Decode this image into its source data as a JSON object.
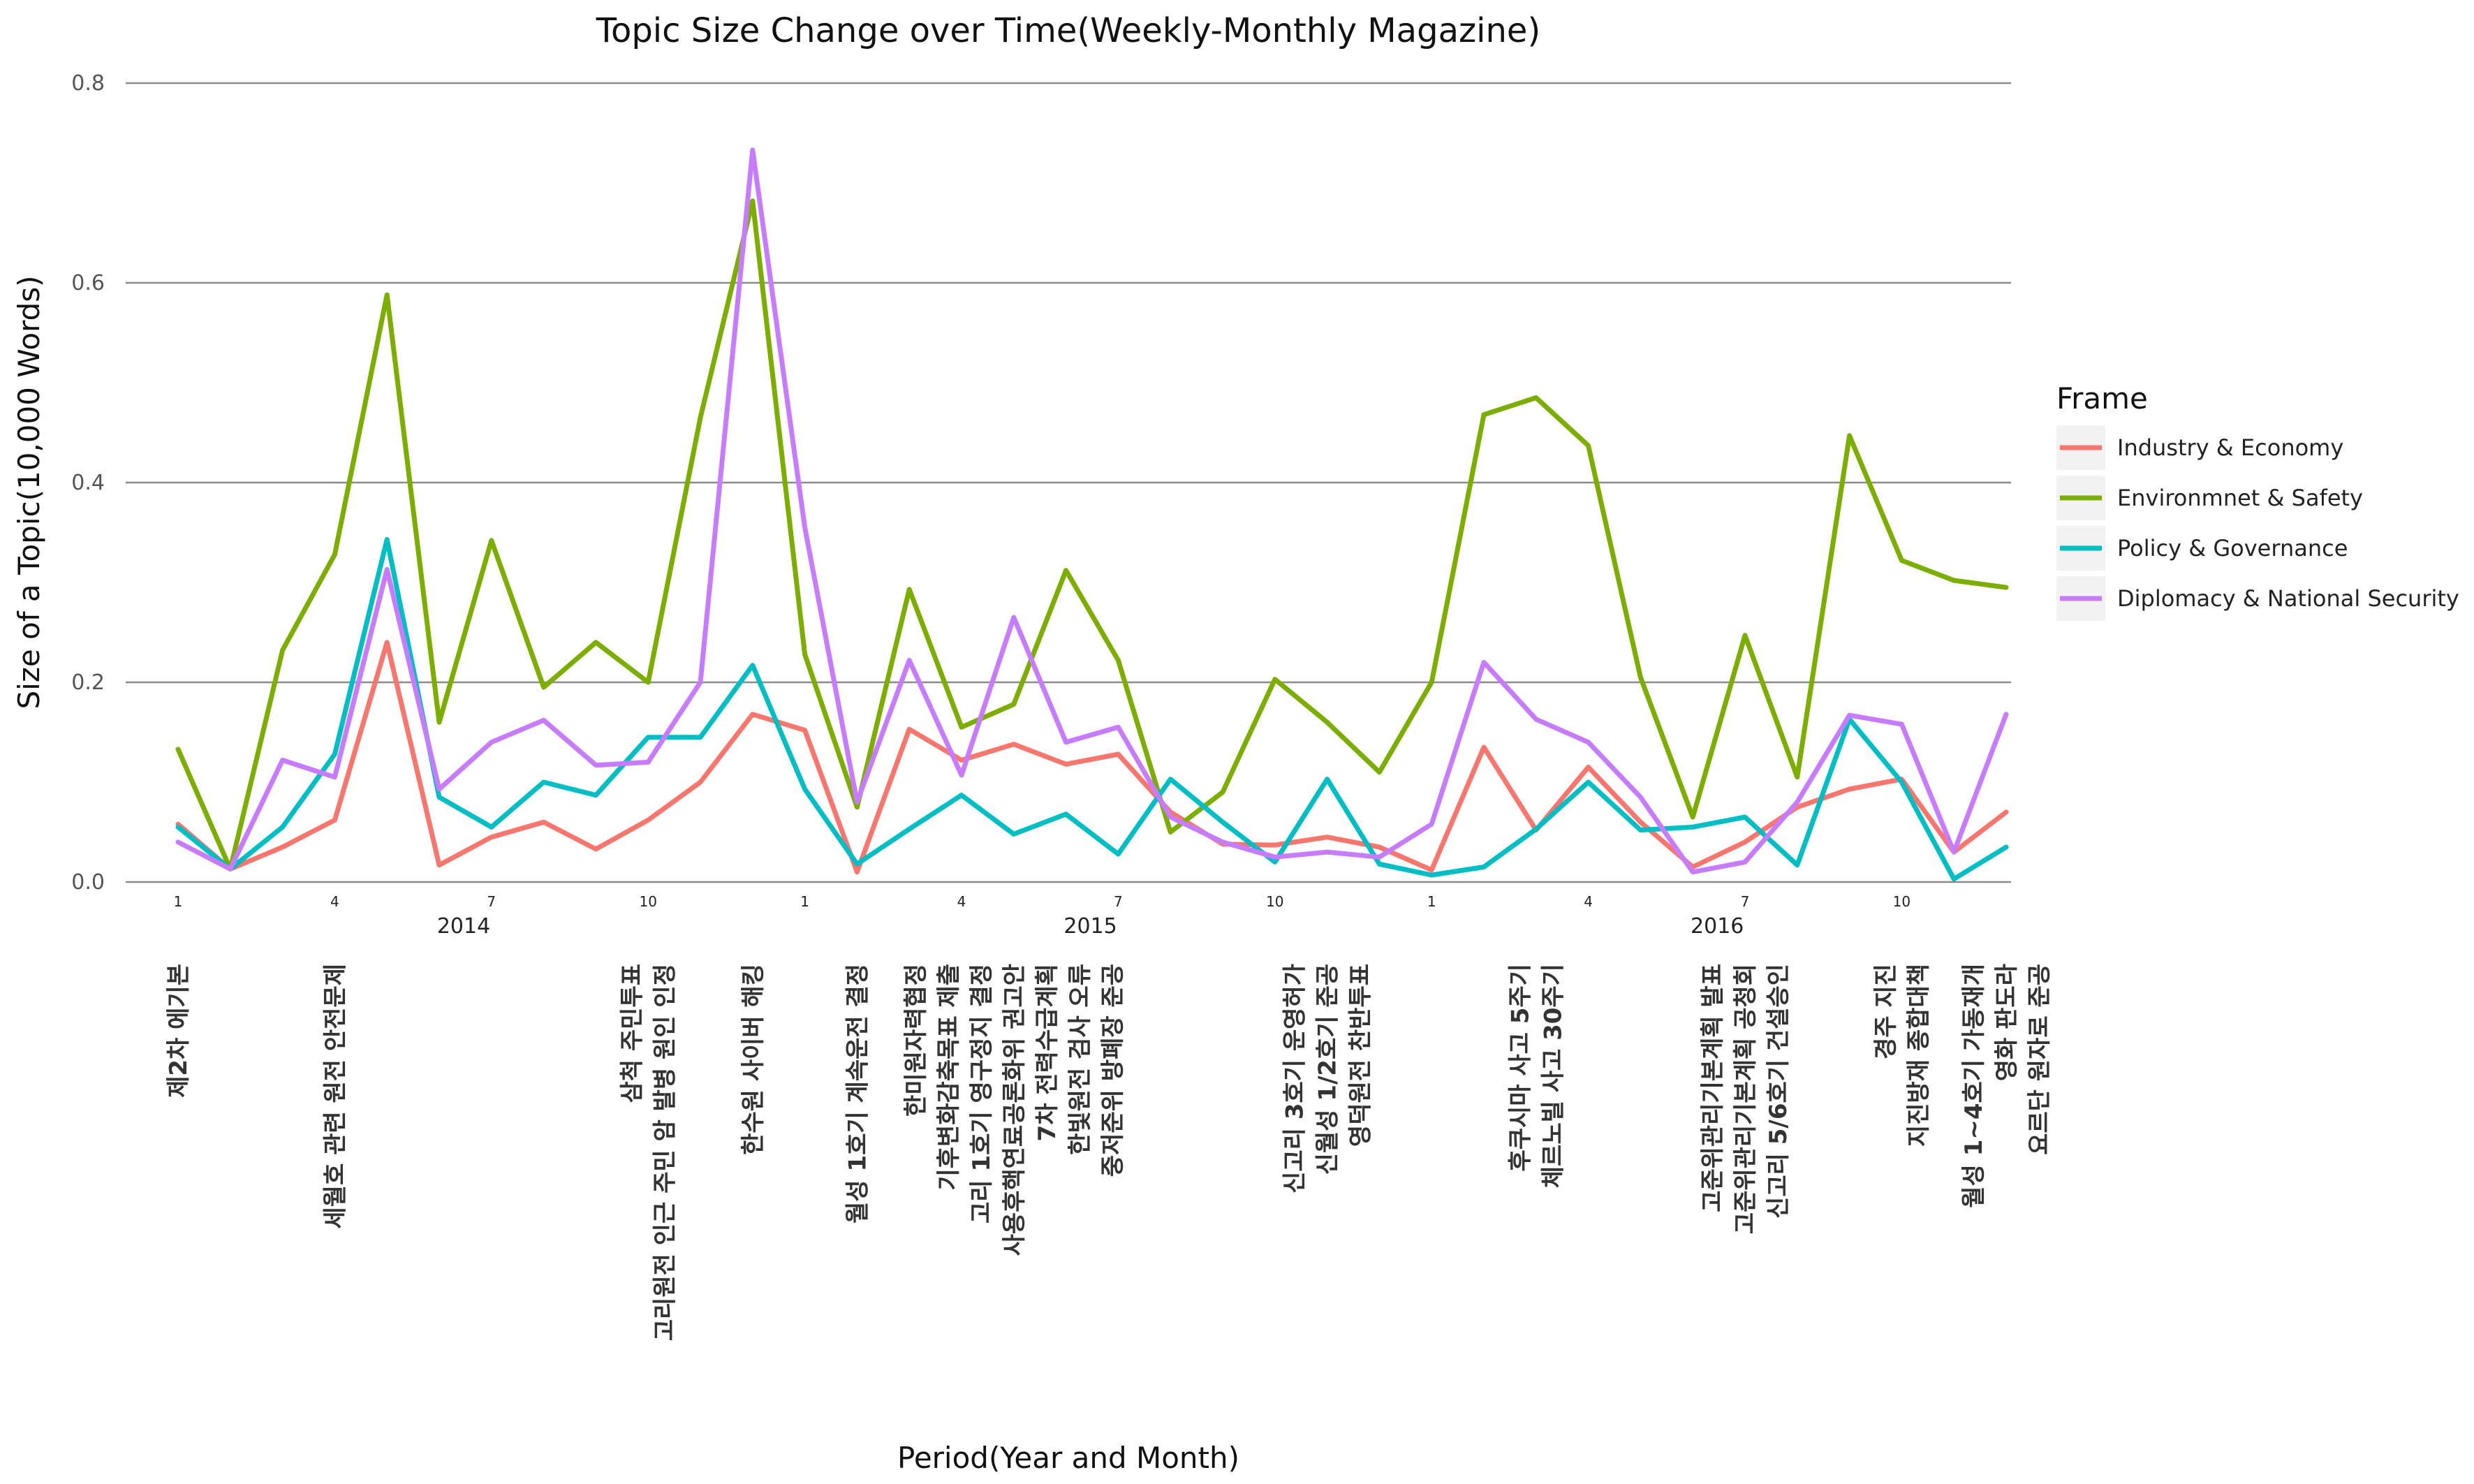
{
  "chart_data": {
    "type": "line",
    "title": "Topic Size Change over Time(Weekly-Monthly Magazine)",
    "xlabel": "Period(Year and Month)",
    "ylabel": "Size of a Topic(10,000 Words)",
    "ylim": [
      0,
      0.8
    ],
    "y_ticks": [
      "0.0",
      "0.2",
      "0.4",
      "0.6",
      "0.8"
    ],
    "grid": "horizontal",
    "legend_title": "Frame",
    "legend_position": "right",
    "x": [
      1,
      2,
      3,
      4,
      5,
      6,
      7,
      8,
      9,
      10,
      11,
      12,
      13,
      14,
      15,
      16,
      17,
      18,
      19,
      20,
      21,
      22,
      23,
      24,
      25,
      26,
      27,
      28,
      29,
      30,
      31,
      32,
      33,
      34,
      35,
      36
    ],
    "month_ticks": [
      {
        "x": 1,
        "label": "1"
      },
      {
        "x": 4,
        "label": "4"
      },
      {
        "x": 7,
        "label": "7"
      },
      {
        "x": 10,
        "label": "10"
      },
      {
        "x": 13,
        "label": "1"
      },
      {
        "x": 16,
        "label": "4"
      },
      {
        "x": 19,
        "label": "7"
      },
      {
        "x": 22,
        "label": "10"
      },
      {
        "x": 25,
        "label": "1"
      },
      {
        "x": 28,
        "label": "4"
      },
      {
        "x": 31,
        "label": "7"
      },
      {
        "x": 34,
        "label": "10"
      }
    ],
    "year_labels": [
      {
        "x": 6,
        "label": "2014"
      },
      {
        "x": 18,
        "label": "2015"
      },
      {
        "x": 30,
        "label": "2016"
      }
    ],
    "series": [
      {
        "name": "Industry & Economy",
        "color": "#F8766D",
        "values": [
          0.058,
          0.013,
          0.035,
          0.062,
          0.24,
          0.017,
          0.045,
          0.06,
          0.033,
          0.062,
          0.1,
          0.168,
          0.152,
          0.01,
          0.153,
          0.122,
          0.138,
          0.118,
          0.128,
          0.07,
          0.038,
          0.037,
          0.045,
          0.035,
          0.012,
          0.135,
          0.052,
          0.115,
          0.06,
          0.015,
          0.04,
          0.075,
          0.093,
          0.103,
          0.03,
          0.07
        ]
      },
      {
        "name": "Environmnet & Safety",
        "color": "#7CAE00",
        "values": [
          0.133,
          0.013,
          0.232,
          0.328,
          0.588,
          0.16,
          0.342,
          0.195,
          0.24,
          0.2,
          0.465,
          0.682,
          0.228,
          0.075,
          0.293,
          0.155,
          0.178,
          0.312,
          0.222,
          0.05,
          0.09,
          0.203,
          0.16,
          0.11,
          0.2,
          0.468,
          0.485,
          0.437,
          0.205,
          0.065,
          0.247,
          0.105,
          0.447,
          0.322,
          0.302,
          0.295
        ]
      },
      {
        "name": "Policy & Governance",
        "color": "#00BFC4",
        "values": [
          0.055,
          0.013,
          0.055,
          0.128,
          0.343,
          0.085,
          0.055,
          0.1,
          0.087,
          0.145,
          0.145,
          0.217,
          0.093,
          0.018,
          0.053,
          0.087,
          0.048,
          0.068,
          0.028,
          0.103,
          0.06,
          0.02,
          0.103,
          0.018,
          0.007,
          0.015,
          0.053,
          0.1,
          0.052,
          0.055,
          0.065,
          0.017,
          0.163,
          0.1,
          0.003,
          0.035
        ]
      },
      {
        "name": "Diplomacy & National Security",
        "color": "#C77CFF",
        "values": [
          0.04,
          0.013,
          0.122,
          0.105,
          0.313,
          0.093,
          0.14,
          0.162,
          0.117,
          0.12,
          0.2,
          0.733,
          0.355,
          0.08,
          0.222,
          0.107,
          0.265,
          0.14,
          0.155,
          0.065,
          0.04,
          0.025,
          0.03,
          0.025,
          0.058,
          0.22,
          0.163,
          0.14,
          0.085,
          0.01,
          0.02,
          0.08,
          0.167,
          0.158,
          0.03,
          0.168
        ]
      }
    ],
    "event_annotations": [
      {
        "x": 1,
        "lines": [
          "제2차 에기본"
        ]
      },
      {
        "x": 4,
        "lines": [
          "세월호 관련 원전 안전문제"
        ]
      },
      {
        "x": 10,
        "lines": [
          "삼척 주민투표",
          "고리원전 인근 주민 암 발병 원인 인정"
        ]
      },
      {
        "x": 12,
        "lines": [
          "한수원 사이버 해킹"
        ]
      },
      {
        "x": 14,
        "lines": [
          "월성 1호기 계속운전 결정"
        ]
      },
      {
        "x": 17,
        "lines": [
          "한미원자력협정",
          "기후변화감축목표 제출",
          "고리 1호기 영구정지 결정",
          "사용후핵연료공론화위 권고안",
          "7차 전력수급계획",
          "한빛원전 검사 오류",
          "중저준위 방폐장 준공"
        ]
      },
      {
        "x": 23,
        "lines": [
          "신고리 3호기 운영허가",
          "신월성 1/2호기 준공",
          "영덕원전 찬반투표"
        ]
      },
      {
        "x": 27,
        "lines": [
          "후쿠시마 사고 5주기",
          "체르노빌 사고 30주기"
        ]
      },
      {
        "x": 31,
        "lines": [
          "고준위관리기본계획 발표",
          "고준위관리기본계획 공청회",
          "신고리 5/6호기 건설승인"
        ]
      },
      {
        "x": 34,
        "lines": [
          "경주 지진",
          "지진방재 종합대책"
        ]
      },
      {
        "x": 36,
        "lines": [
          "월성 1~4호기 가동재개",
          "영화 판도라",
          "요르단 원자로 준공"
        ]
      }
    ]
  }
}
